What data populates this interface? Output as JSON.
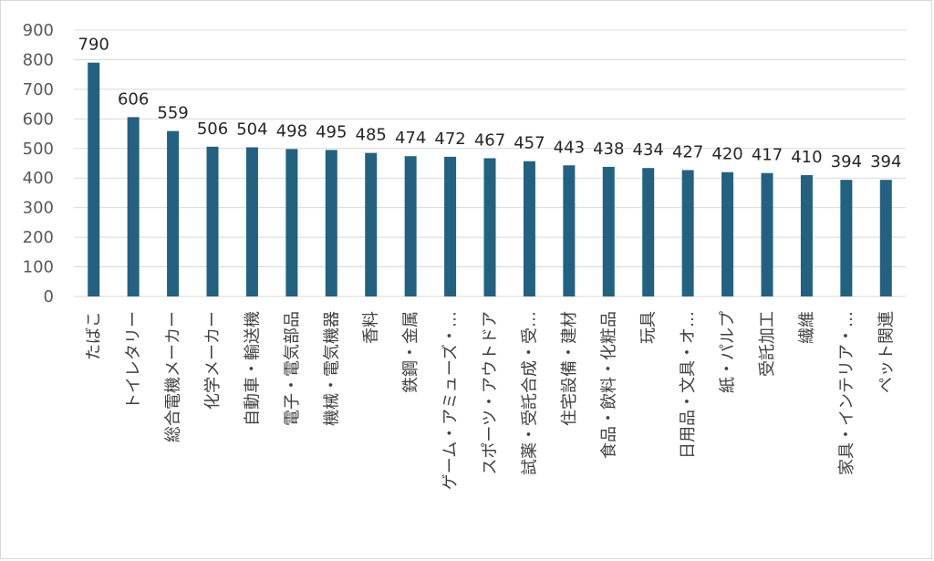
{
  "chart_data": {
    "type": "bar",
    "categories": [
      "たばこ",
      "トイレタリー",
      "総合電機メーカー",
      "化学メーカー",
      "自動車・輸送機",
      "電子・電気部品",
      "機械・電気機器",
      "香料",
      "鉄鋼・金属",
      "ゲーム・アミューズ・…",
      "スポーツ・アウトドア",
      "試薬・受託合成・受…",
      "住宅設備・建材",
      "食品・飲料・化粧品",
      "玩具",
      "日用品・文具・オ…",
      "紙・パルプ",
      "受託加工",
      "繊維",
      "家具・インテリア・…",
      "ペット関連"
    ],
    "values": [
      790,
      606,
      559,
      506,
      504,
      498,
      495,
      485,
      474,
      472,
      467,
      457,
      443,
      438,
      434,
      427,
      420,
      417,
      410,
      394,
      394
    ],
    "ylim": [
      0,
      900
    ],
    "yticks": [
      "0",
      "100",
      "200",
      "300",
      "400",
      "500",
      "600",
      "700",
      "800",
      "900"
    ],
    "grid": true,
    "bar_color": "#236180",
    "grid_color": "#d9d9d9"
  }
}
